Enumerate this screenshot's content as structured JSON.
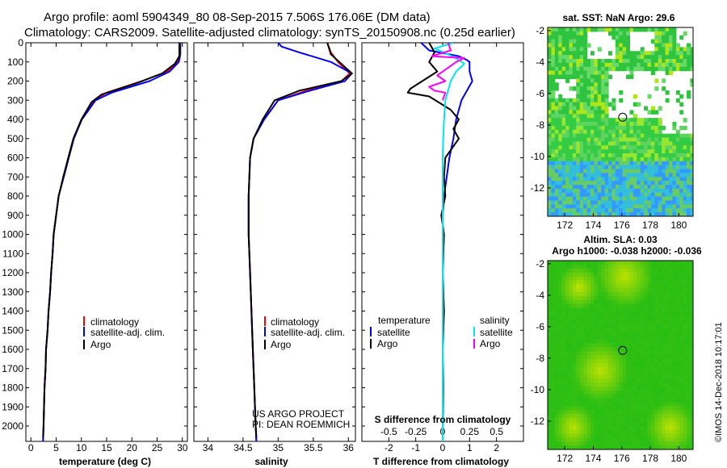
{
  "title": {
    "line1": "Argo profile: aoml 5904349_80 08-Sep-2015 7.506S 176.06E (DM data)",
    "line2": "Climatology: CARS2009. Satellite-adjusted climatology: synTS_20150908.nc (0.25d earlier)"
  },
  "credit": {
    "line1": "US ARGO PROJECT",
    "line2": "PI: DEAN ROEMMICH"
  },
  "timestamp": "©IMOS 14-Dec-2018 10:17:01",
  "colors": {
    "climatology": "#ff0000",
    "satellite": "#0000ff",
    "argo": "#000000",
    "sat_salinity": "#00e5ee",
    "argo_salinity": "#ff00ff"
  },
  "chart_data": [
    {
      "type": "line",
      "id": "temperature",
      "xlabel": "temperature (deg C)",
      "ylabel": "",
      "xlim": [
        -1,
        31
      ],
      "ylim": [
        2080,
        0
      ],
      "xticks": [
        0,
        5,
        10,
        15,
        20,
        25,
        30
      ],
      "yticks": [
        0,
        100,
        200,
        300,
        400,
        500,
        600,
        700,
        800,
        900,
        1000,
        1100,
        1200,
        1300,
        1400,
        1500,
        1600,
        1700,
        1800,
        1900,
        2000
      ],
      "legend": [
        "climatology",
        "satellite-adj. clim.",
        "Argo"
      ],
      "legend_colors": [
        "#ff0000",
        "#0000ff",
        "#000000"
      ],
      "series": [
        {
          "name": "climatology",
          "color": "#ff0000",
          "points": [
            [
              29.5,
              0
            ],
            [
              29.5,
              60
            ],
            [
              29.0,
              100
            ],
            [
              27.0,
              150
            ],
            [
              22.0,
              200
            ],
            [
              15.0,
              260
            ],
            [
              12.5,
              300
            ],
            [
              10.0,
              400
            ],
            [
              8.5,
              500
            ],
            [
              7.5,
              600
            ],
            [
              6.5,
              700
            ],
            [
              5.5,
              800
            ],
            [
              5.0,
              900
            ],
            [
              4.5,
              1000
            ],
            [
              4.3,
              1100
            ],
            [
              4.0,
              1200
            ],
            [
              3.8,
              1300
            ],
            [
              3.5,
              1400
            ],
            [
              3.3,
              1500
            ],
            [
              3.0,
              1600
            ],
            [
              2.9,
              1700
            ],
            [
              2.7,
              1800
            ],
            [
              2.6,
              1900
            ],
            [
              2.5,
              2000
            ],
            [
              2.4,
              2080
            ]
          ]
        },
        {
          "name": "satellite-adj. clim.",
          "color": "#0000ff",
          "points": [
            [
              29.6,
              0
            ],
            [
              29.6,
              60
            ],
            [
              29.3,
              100
            ],
            [
              27.5,
              150
            ],
            [
              23.5,
              200
            ],
            [
              16.0,
              260
            ],
            [
              12.8,
              300
            ],
            [
              10.1,
              400
            ],
            [
              8.5,
              500
            ],
            [
              7.5,
              600
            ],
            [
              6.5,
              700
            ],
            [
              5.5,
              800
            ],
            [
              5.0,
              900
            ],
            [
              4.5,
              1000
            ],
            [
              4.3,
              1100
            ],
            [
              4.0,
              1200
            ],
            [
              3.8,
              1300
            ],
            [
              3.5,
              1400
            ],
            [
              3.3,
              1500
            ],
            [
              3.0,
              1600
            ],
            [
              2.9,
              1700
            ],
            [
              2.7,
              1800
            ],
            [
              2.6,
              1900
            ],
            [
              2.5,
              2000
            ],
            [
              2.4,
              2080
            ]
          ]
        },
        {
          "name": "Argo",
          "color": "#000000",
          "points": [
            [
              29.4,
              0
            ],
            [
              29.4,
              70
            ],
            [
              28.5,
              110
            ],
            [
              26.0,
              160
            ],
            [
              21.0,
              210
            ],
            [
              14.0,
              270
            ],
            [
              12.0,
              310
            ],
            [
              10.0,
              400
            ],
            [
              8.4,
              500
            ],
            [
              7.4,
              600
            ],
            [
              6.4,
              700
            ],
            [
              5.5,
              800
            ],
            [
              5.0,
              900
            ],
            [
              4.5,
              1000
            ],
            [
              4.3,
              1100
            ],
            [
              4.0,
              1200
            ],
            [
              3.8,
              1300
            ],
            [
              3.5,
              1400
            ],
            [
              3.3,
              1500
            ],
            [
              3.0,
              1600
            ],
            [
              2.9,
              1700
            ],
            [
              2.7,
              1800
            ],
            [
              2.6,
              1900
            ],
            [
              2.5,
              2000
            ],
            [
              2.4,
              2060
            ]
          ]
        }
      ]
    },
    {
      "type": "line",
      "id": "salinity",
      "xlabel": "salinity",
      "xlim": [
        33.8,
        36.1
      ],
      "ylim": [
        2080,
        0
      ],
      "xticks": [
        34,
        34.5,
        35,
        35.5,
        36
      ],
      "xticklabels": [
        "34",
        "34.5",
        "35",
        "35.5",
        "36"
      ],
      "legend": [
        "climatology",
        "satellite-adj. clim.",
        "Argo"
      ],
      "legend_colors": [
        "#ff0000",
        "#0000ff",
        "#000000"
      ],
      "series": [
        {
          "name": "climatology",
          "color": "#ff0000",
          "points": [
            [
              35.7,
              0
            ],
            [
              35.75,
              50
            ],
            [
              35.85,
              100
            ],
            [
              36.02,
              160
            ],
            [
              35.9,
              200
            ],
            [
              35.4,
              250
            ],
            [
              35.0,
              300
            ],
            [
              34.8,
              400
            ],
            [
              34.65,
              500
            ],
            [
              34.6,
              600
            ],
            [
              34.58,
              800
            ],
            [
              34.58,
              1000
            ],
            [
              34.6,
              1200
            ],
            [
              34.62,
              1400
            ],
            [
              34.64,
              1600
            ],
            [
              34.66,
              1800
            ],
            [
              34.68,
              2000
            ],
            [
              34.69,
              2080
            ]
          ]
        },
        {
          "name": "satellite-adj. clim.",
          "color": "#0000ff",
          "points": [
            [
              35.0,
              0
            ],
            [
              35.05,
              20
            ],
            [
              35.3,
              50
            ],
            [
              35.75,
              100
            ],
            [
              36.05,
              160
            ],
            [
              35.95,
              200
            ],
            [
              35.45,
              250
            ],
            [
              35.0,
              300
            ],
            [
              34.8,
              400
            ],
            [
              34.65,
              500
            ],
            [
              34.6,
              600
            ],
            [
              34.58,
              800
            ],
            [
              34.58,
              1000
            ],
            [
              34.6,
              1200
            ],
            [
              34.62,
              1400
            ],
            [
              34.64,
              1600
            ],
            [
              34.66,
              1800
            ],
            [
              34.68,
              2000
            ],
            [
              34.69,
              2080
            ]
          ]
        },
        {
          "name": "Argo",
          "color": "#000000",
          "points": [
            [
              35.7,
              0
            ],
            [
              35.75,
              60
            ],
            [
              35.9,
              110
            ],
            [
              36.05,
              160
            ],
            [
              35.9,
              200
            ],
            [
              35.3,
              250
            ],
            [
              34.95,
              300
            ],
            [
              34.78,
              400
            ],
            [
              34.65,
              500
            ],
            [
              34.6,
              600
            ],
            [
              34.58,
              800
            ],
            [
              34.58,
              1000
            ],
            [
              34.6,
              1200
            ],
            [
              34.62,
              1400
            ],
            [
              34.64,
              1600
            ],
            [
              34.66,
              1800
            ],
            [
              34.68,
              2000
            ],
            [
              34.69,
              2060
            ]
          ]
        }
      ]
    },
    {
      "type": "line",
      "id": "differences",
      "xlabel": "T difference from climatology",
      "x2label": "S difference from climatology",
      "xlim": [
        -3,
        3
      ],
      "ylim": [
        2080,
        0
      ],
      "xticks": [
        -2,
        -1,
        0,
        1,
        2
      ],
      "xticklabels": [
        "-2",
        "-1",
        "0",
        "1",
        "2"
      ],
      "x2ticks": [
        -0.5,
        -0.25,
        0,
        0.25,
        0.5
      ],
      "x2ticklabels": [
        "-0.5",
        "-0.25",
        "0",
        "0.25",
        "0.5"
      ],
      "legend_left_title": "temperature",
      "legend_right_title": "salinity",
      "legend_left": [
        "satellite",
        "Argo"
      ],
      "legend_left_colors": [
        "#0000ff",
        "#000000"
      ],
      "legend_right": [
        "satellite",
        "Argo"
      ],
      "legend_right_colors": [
        "#00e5ee",
        "#ff00ff"
      ],
      "series": [
        {
          "name": "T satellite",
          "color": "#0000ff",
          "points": [
            [
              -0.8,
              0
            ],
            [
              -0.5,
              40
            ],
            [
              0.6,
              70
            ],
            [
              0.9,
              90
            ],
            [
              1.0,
              100
            ],
            [
              1.0,
              150
            ],
            [
              1.1,
              200
            ],
            [
              0.9,
              250
            ],
            [
              0.7,
              300
            ],
            [
              0.5,
              400
            ],
            [
              0.4,
              500
            ],
            [
              0.25,
              600
            ],
            [
              0.15,
              700
            ],
            [
              0.05,
              800
            ],
            [
              0.0,
              900
            ],
            [
              0.0,
              2080
            ]
          ]
        },
        {
          "name": "T Argo",
          "color": "#000000",
          "points": [
            [
              -0.5,
              0
            ],
            [
              -0.3,
              50
            ],
            [
              -0.5,
              100
            ],
            [
              -0.2,
              150
            ],
            [
              -1.2,
              240
            ],
            [
              -1.3,
              260
            ],
            [
              -0.5,
              280
            ],
            [
              0.3,
              350
            ],
            [
              0.6,
              400
            ],
            [
              0.4,
              450
            ],
            [
              0.6,
              500
            ],
            [
              0.1,
              600
            ],
            [
              0.05,
              700
            ],
            [
              0.1,
              800
            ],
            [
              -0.05,
              900
            ],
            [
              0.05,
              1000
            ],
            [
              0.0,
              1200
            ],
            [
              0.05,
              1400
            ],
            [
              0.0,
              1600
            ],
            [
              0.02,
              1800
            ],
            [
              0.0,
              2060
            ]
          ]
        },
        {
          "name": "S satellite",
          "color": "#00e5ee",
          "points": [
            [
              0.4,
              0
            ],
            [
              -0.3,
              30
            ],
            [
              0.2,
              60
            ],
            [
              0.6,
              90
            ],
            [
              0.8,
              110
            ],
            [
              0.5,
              150
            ],
            [
              0.3,
              200
            ],
            [
              0.1,
              300
            ],
            [
              0.05,
              400
            ],
            [
              0.02,
              500
            ],
            [
              0.0,
              600
            ],
            [
              0.0,
              2080
            ]
          ]
        },
        {
          "name": "S Argo",
          "color": "#ff00ff",
          "points": [
            [
              0.2,
              0
            ],
            [
              0.3,
              40
            ],
            [
              -0.4,
              70
            ],
            [
              0.8,
              80
            ],
            [
              0.5,
              100
            ],
            [
              0.2,
              130
            ],
            [
              -0.2,
              170
            ],
            [
              0.1,
              200
            ],
            [
              -0.5,
              230
            ],
            [
              -0.3,
              250
            ],
            [
              0.1,
              260
            ],
            [
              0.0,
              300
            ]
          ]
        }
      ]
    },
    {
      "type": "heatmap",
      "id": "sst-map",
      "title": "sat. SST: NaN Argo: 29.6",
      "xlim": [
        170.8,
        181
      ],
      "ylim": [
        -13.8,
        -1.8
      ],
      "xticks": [
        172,
        174,
        176,
        178,
        180
      ],
      "yticks": [
        -2,
        -4,
        -6,
        -8,
        -10,
        -12
      ],
      "marker": {
        "lon": 176.06,
        "lat": -7.506
      },
      "cloud_gaps": [
        {
          "lon": [
            173.5,
            175.6
          ],
          "lat": [
            -2.0,
            -3.8
          ]
        },
        {
          "lon": [
            176.6,
            178.2
          ],
          "lat": [
            -2.0,
            -3.2
          ]
        },
        {
          "lon": [
            179.7,
            181.0
          ],
          "lat": [
            -1.8,
            -3.0
          ]
        },
        {
          "lon": [
            175.0,
            181.0
          ],
          "lat": [
            -4.6,
            -7.6
          ]
        },
        {
          "lon": [
            171.2,
            172.8
          ],
          "lat": [
            -5.0,
            -6.2
          ]
        },
        {
          "lon": [
            178.8,
            181.0
          ],
          "lat": [
            -7.4,
            -8.6
          ]
        }
      ]
    },
    {
      "type": "heatmap",
      "id": "sla-map",
      "title": "Altim. SLA: 0.03",
      "subtitle": "Argo h1000: -0.038 h2000: -0.036",
      "xlim": [
        170.8,
        181
      ],
      "ylim": [
        -13.8,
        -1.8
      ],
      "xticks": [
        172,
        174,
        176,
        178,
        180
      ],
      "yticks": [
        -2,
        -4,
        -6,
        -8,
        -10,
        -12
      ],
      "marker": {
        "lon": 176.06,
        "lat": -7.506
      },
      "blobs": [
        {
          "lon": 176.2,
          "lat": -2.8,
          "r": 2.0
        },
        {
          "lon": 173.0,
          "lat": -3.5,
          "r": 1.5
        },
        {
          "lon": 174.5,
          "lat": -8.8,
          "r": 2.0
        },
        {
          "lon": 179.4,
          "lat": -12.4,
          "r": 1.7
        },
        {
          "lon": 172.6,
          "lat": -12.4,
          "r": 1.5
        }
      ]
    }
  ]
}
